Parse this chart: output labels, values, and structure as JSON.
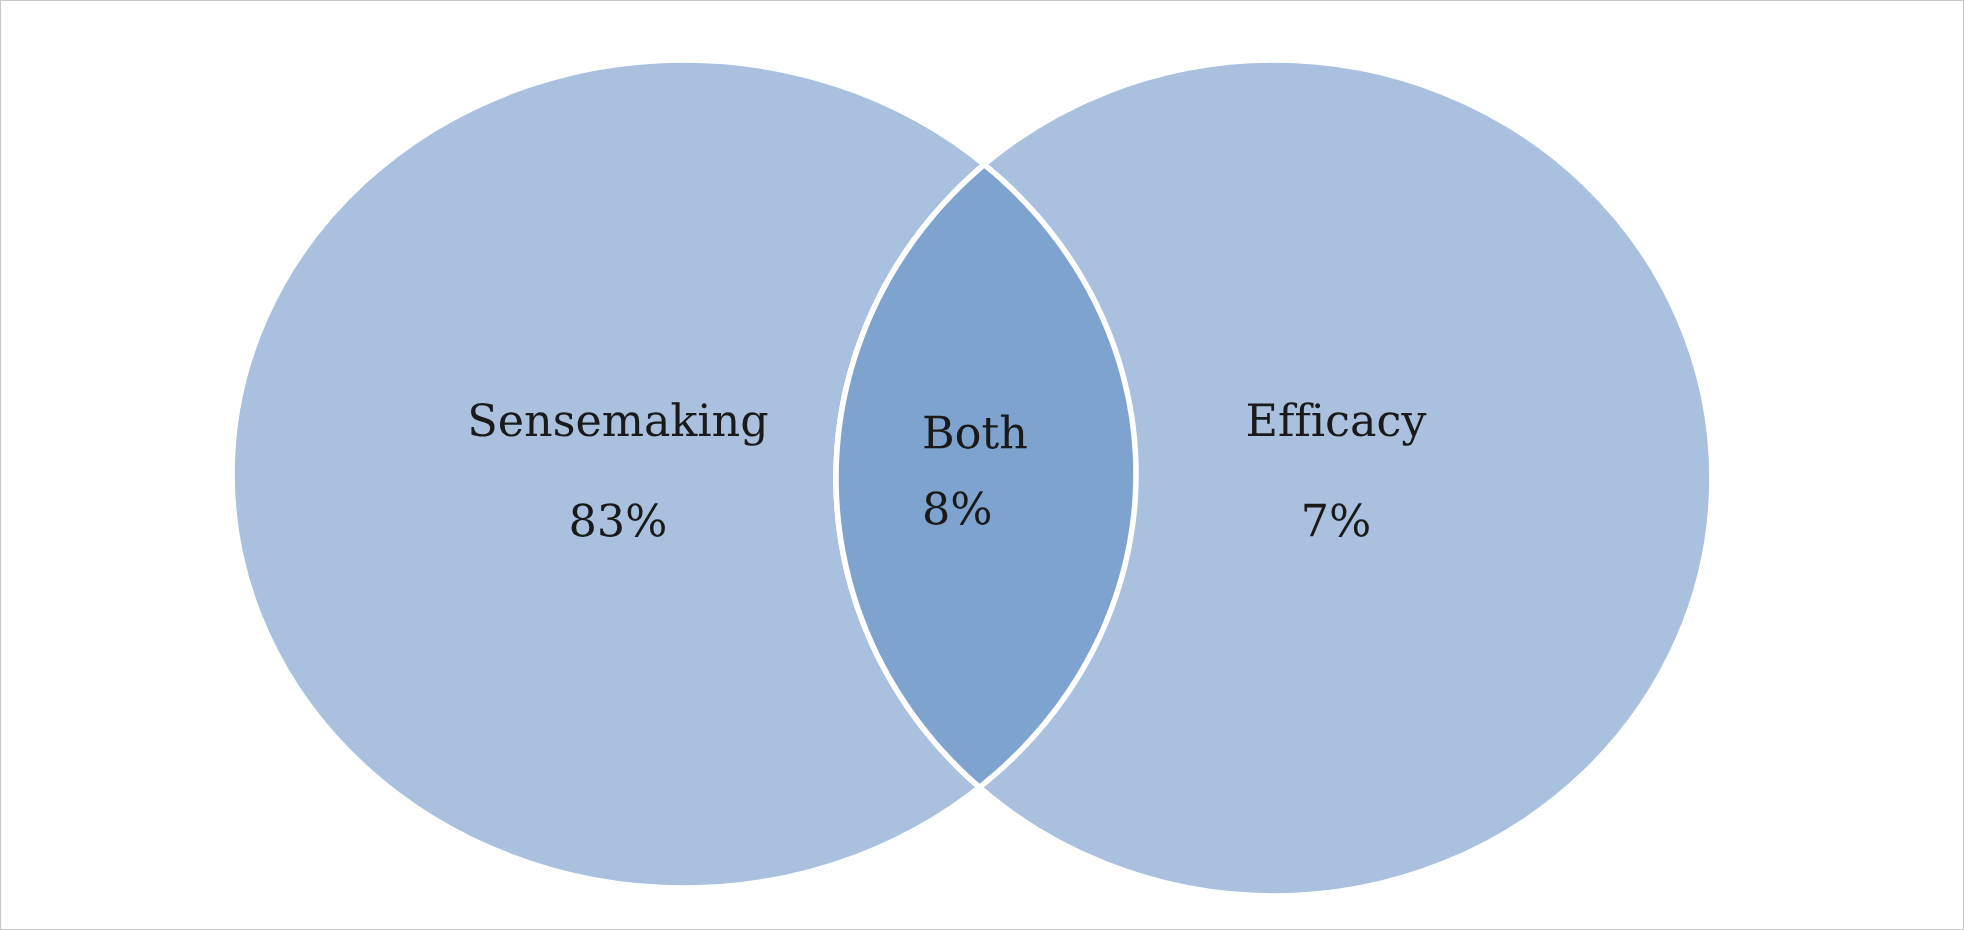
{
  "chart_data": {
    "type": "other",
    "categories": [
      "Sensemaking",
      "Both",
      "Efficacy"
    ],
    "values": [
      83,
      8,
      7
    ],
    "value_labels": [
      "83%",
      "8%",
      "7%"
    ],
    "colors": [
      "#a9c1df",
      "#7ea3cf",
      "#a9c1df"
    ]
  }
}
